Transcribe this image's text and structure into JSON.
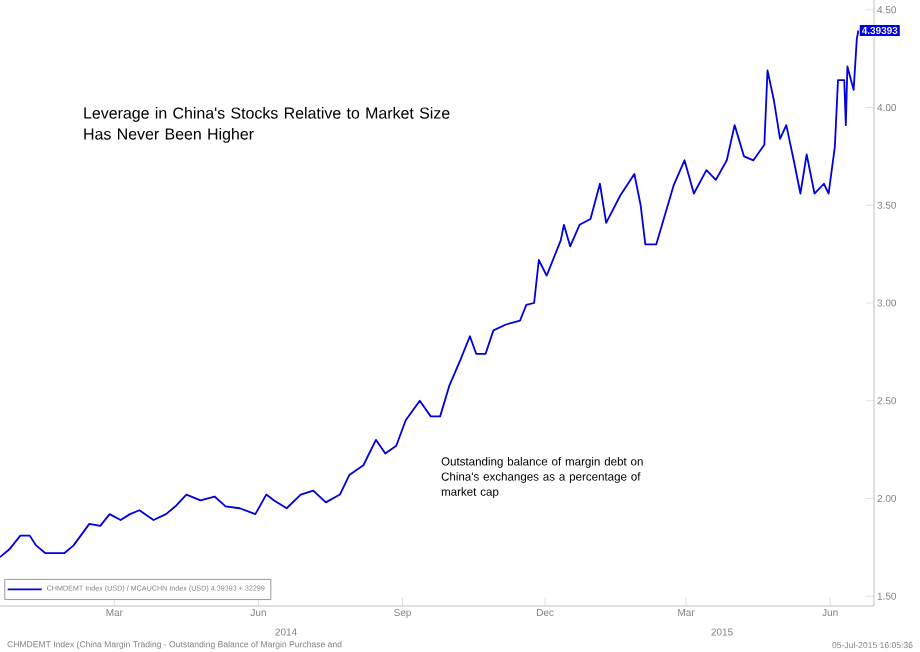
{
  "chart_data": {
    "type": "line",
    "title": "Leverage in China's Stocks Relative to Market Size Has Never Been Higher",
    "annotations": [
      "Outstanding balance of margin debt on China's exchanges as a percentage of market cap",
      "2014",
      "2015",
      "CHMDEMT Index (China Margin Trading - Outstanding Balance of Margin Purchase and",
      "05-Jul-2015 16:05:36"
    ],
    "x": [
      "2014-01-01",
      "2014-01-07",
      "2014-01-14",
      "2014-01-20",
      "2014-01-24",
      "2014-01-30",
      "2014-02-11",
      "2014-02-17",
      "2014-02-27",
      "2014-03-06",
      "2014-03-12",
      "2014-03-19",
      "2014-03-25",
      "2014-03-31",
      "2014-04-09",
      "2014-04-17",
      "2014-04-23",
      "2014-04-30",
      "2014-05-09",
      "2014-05-18",
      "2014-05-25",
      "2014-06-03",
      "2014-06-13",
      "2014-06-20",
      "2014-06-25",
      "2014-07-03",
      "2014-07-12",
      "2014-07-20",
      "2014-07-28",
      "2014-08-06",
      "2014-08-12",
      "2014-08-21",
      "2014-08-29",
      "2014-09-04",
      "2014-09-11",
      "2014-09-17",
      "2014-09-26",
      "2014-10-03",
      "2014-10-09",
      "2014-10-15",
      "2014-10-22",
      "2014-10-28",
      "2014-11-01",
      "2014-11-07",
      "2014-11-12",
      "2014-11-20",
      "2014-11-29",
      "2014-12-03",
      "2014-12-08",
      "2014-12-11",
      "2014-12-16",
      "2014-12-25",
      "2014-12-27",
      "2014-12-31",
      "2015-01-06",
      "2015-01-13",
      "2015-01-19",
      "2015-01-23",
      "2015-02-01",
      "2015-02-10",
      "2015-02-14",
      "2015-02-17",
      "2015-02-24",
      "2015-03-07",
      "2015-03-14",
      "2015-03-20",
      "2015-03-28",
      "2015-04-03",
      "2015-04-10",
      "2015-04-15",
      "2015-04-21",
      "2015-04-27",
      "2015-05-04",
      "2015-05-06",
      "2015-05-10",
      "2015-05-14",
      "2015-05-18",
      "2015-05-23",
      "2015-05-27",
      "2015-05-31",
      "2015-06-05",
      "2015-06-11",
      "2015-06-14",
      "2015-06-18",
      "2015-06-20",
      "2015-06-24",
      "2015-06-25",
      "2015-06-26",
      "2015-06-30",
      "2015-07-02",
      "2015-07-03"
    ],
    "series": [
      {
        "name": "CHMDEMT Index (USD) / MCAUCHN Index (USD) 4.39393 +.32299",
        "color": "#0000e0",
        "values": [
          1.7,
          1.74,
          1.81,
          1.81,
          1.76,
          1.72,
          1.72,
          1.76,
          1.87,
          1.86,
          1.92,
          1.89,
          1.92,
          1.94,
          1.89,
          1.92,
          1.96,
          2.02,
          1.99,
          2.01,
          1.96,
          1.95,
          1.92,
          2.02,
          1.99,
          1.95,
          2.02,
          2.04,
          1.98,
          2.02,
          2.12,
          2.17,
          2.3,
          2.23,
          2.27,
          2.4,
          2.5,
          2.42,
          2.42,
          2.58,
          2.71,
          2.83,
          2.74,
          2.74,
          2.86,
          2.89,
          2.91,
          2.99,
          3.0,
          3.22,
          3.14,
          3.32,
          3.4,
          3.29,
          3.4,
          3.43,
          3.61,
          3.41,
          3.55,
          3.66,
          3.5,
          3.3,
          3.3,
          3.6,
          3.73,
          3.56,
          3.68,
          3.63,
          3.73,
          3.91,
          3.75,
          3.73,
          3.81,
          4.19,
          4.04,
          3.84,
          3.91,
          3.72,
          3.56,
          3.76,
          3.56,
          3.61,
          3.56,
          3.8,
          4.14,
          4.14,
          3.91,
          4.21,
          4.09,
          4.35,
          4.39393
        ],
        "value_labels": [
          null,
          null,
          null,
          null,
          null,
          null,
          null,
          null,
          null,
          null,
          null,
          null,
          null,
          null,
          null,
          null,
          null,
          null,
          null,
          null,
          null,
          null,
          null,
          null,
          null,
          null,
          null,
          null,
          null,
          null,
          null,
          null,
          null,
          null,
          null,
          null,
          null,
          null,
          null,
          null,
          null,
          null,
          null,
          null,
          null,
          null,
          null,
          null,
          null,
          null,
          null,
          null,
          null,
          null,
          null,
          null,
          null,
          null,
          null,
          null,
          null,
          null,
          null,
          null,
          null,
          null,
          null,
          null,
          null,
          null,
          null,
          null,
          null,
          null,
          null,
          null,
          null,
          null,
          null,
          null,
          null,
          null,
          null,
          null,
          null,
          null,
          null,
          null,
          null,
          null,
          "4.39393"
        ]
      }
    ],
    "xlim": [
      "2014-01-01",
      "2015-07-13"
    ],
    "xticks": [
      {
        "value": "2014-03-15",
        "label": "Mar"
      },
      {
        "value": "2014-06-15",
        "label": "Jun"
      },
      {
        "value": "2014-09-15",
        "label": "Sep"
      },
      {
        "value": "2014-12-15",
        "label": "Dec"
      },
      {
        "value": "2015-03-15",
        "label": "Mar"
      },
      {
        "value": "2015-06-15",
        "label": "Jun"
      }
    ],
    "ylim": [
      1.45,
      4.55
    ],
    "yticks": [
      {
        "value": 1.5,
        "label": "1.50"
      },
      {
        "value": 2.0,
        "label": "2.00"
      },
      {
        "value": 2.5,
        "label": "2.50"
      },
      {
        "value": 3.0,
        "label": "3.00"
      },
      {
        "value": 3.5,
        "label": "3.50"
      },
      {
        "value": 4.0,
        "label": "4.00"
      },
      {
        "value": 4.5,
        "label": "4.50"
      }
    ],
    "grid": false,
    "legend": "bottom left",
    "marker": "none",
    "line_style": "solid"
  }
}
